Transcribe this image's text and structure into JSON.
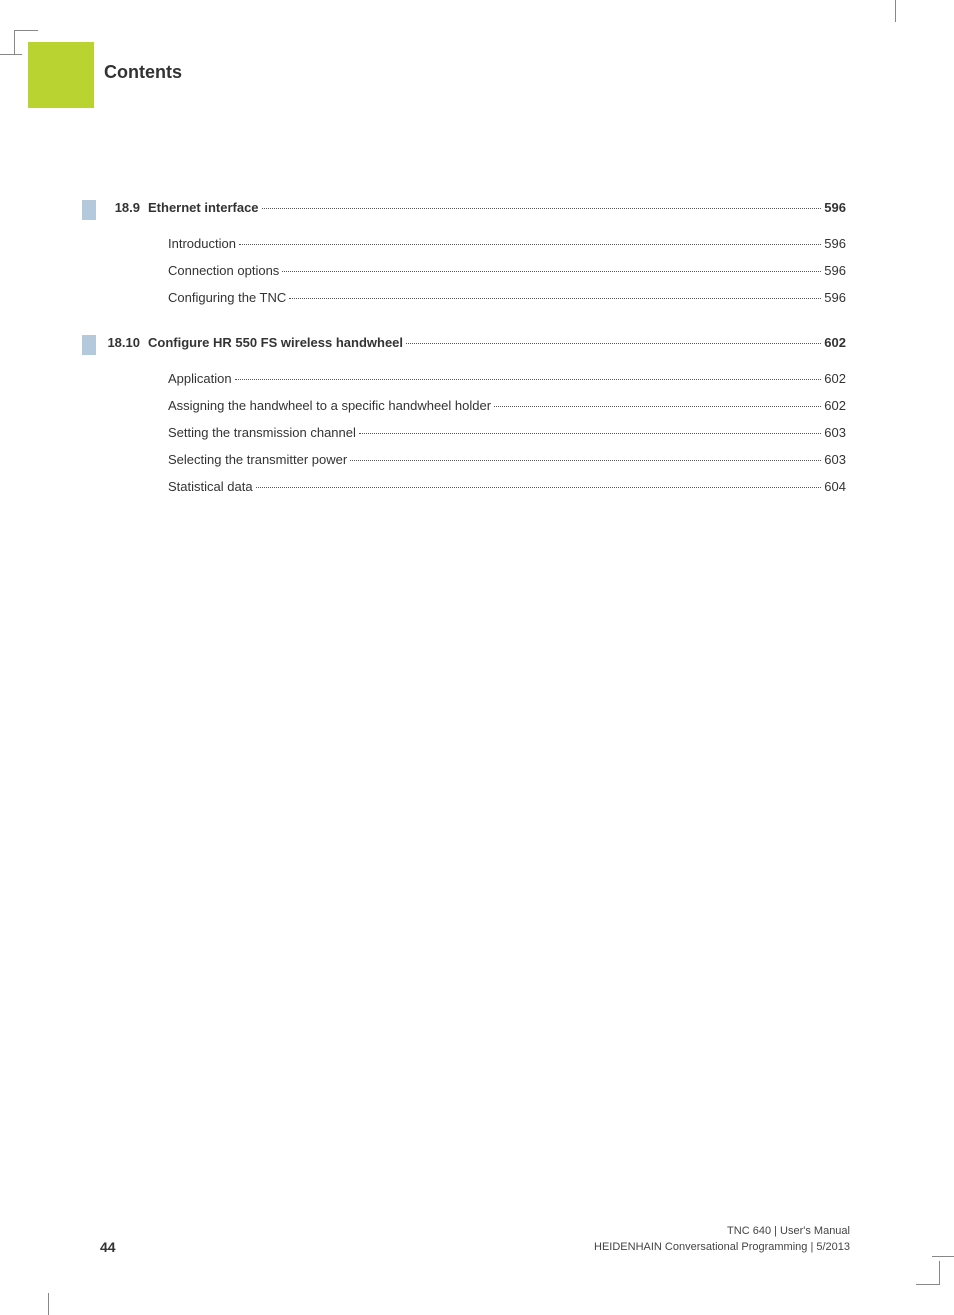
{
  "colors": {
    "accent_green": "#b9d331",
    "section_bar": "#b5c9dd",
    "text": "#333333",
    "background": "#ffffff"
  },
  "title": "Contents",
  "sections": [
    {
      "number": "18.9",
      "heading": "Ethernet interface",
      "page": "596",
      "entries": [
        {
          "label": "Introduction",
          "page": "596"
        },
        {
          "label": "Connection options",
          "page": "596"
        },
        {
          "label": "Configuring the TNC",
          "page": "596"
        }
      ]
    },
    {
      "number": "18.10",
      "heading": "Configure HR 550 FS wireless handwheel",
      "page": "602",
      "entries": [
        {
          "label": "Application",
          "page": "602"
        },
        {
          "label": "Assigning the handwheel to a specific handwheel holder",
          "page": "602"
        },
        {
          "label": "Setting the transmission channel",
          "page": "603"
        },
        {
          "label": "Selecting the transmitter power",
          "page": "603"
        },
        {
          "label": "Statistical data",
          "page": "604"
        }
      ]
    }
  ],
  "footer": {
    "page_number": "44",
    "line1": "TNC 640 | User's Manual",
    "line2": "HEIDENHAIN Conversational Programming | 5/2013"
  }
}
